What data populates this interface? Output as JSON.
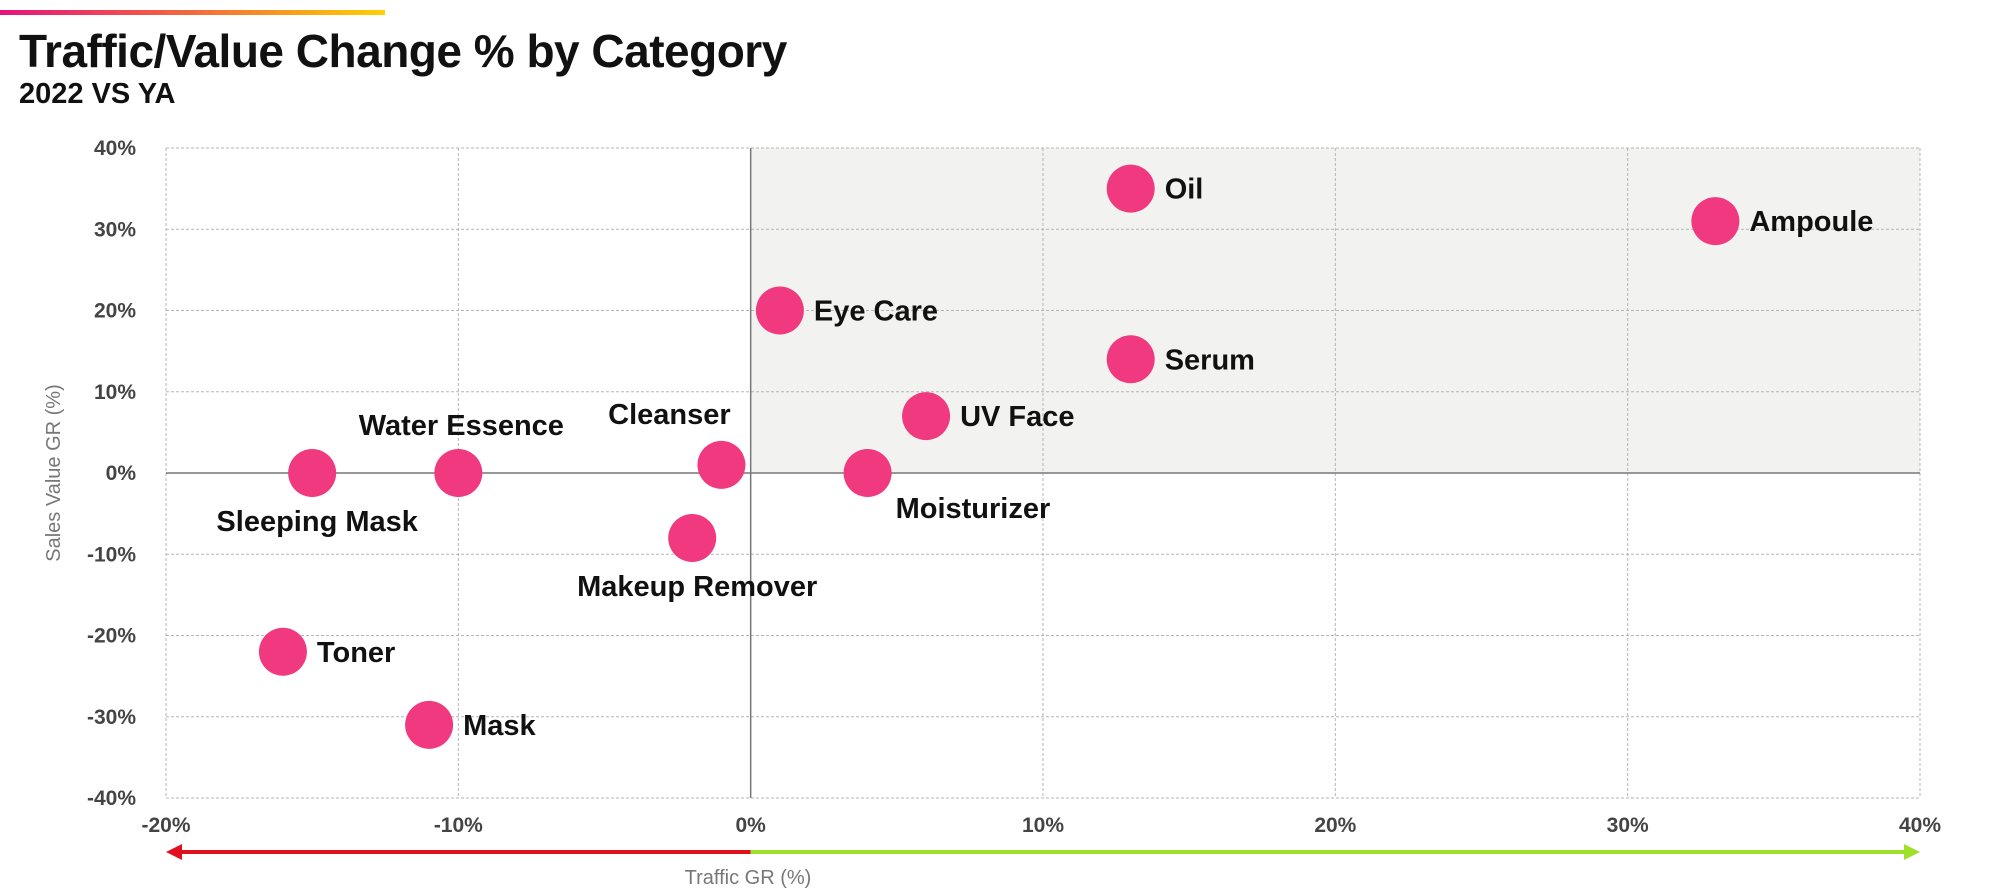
{
  "header": {
    "title": "Traffic/Value Change % by Category",
    "subtitle": "2022 VS YA"
  },
  "colors": {
    "point": "#f0397e",
    "highlight_quadrant": "#f2f2f1",
    "arrow_negative": "#e0101f",
    "arrow_positive": "#9fe02a",
    "grid": "#b5b5b5",
    "zero_axis": "#777777"
  },
  "chart_data": {
    "type": "scatter",
    "title": "Traffic/Value Change % by Category",
    "subtitle": "2022 VS YA",
    "xlabel": "Traffic GR (%)",
    "ylabel": "Sales Value GR (%)",
    "xlim": [
      -20,
      40
    ],
    "ylim": [
      -40,
      40
    ],
    "x_ticks": [
      -20,
      -10,
      0,
      10,
      20,
      30,
      40
    ],
    "y_ticks": [
      -40,
      -30,
      -20,
      -10,
      0,
      10,
      20,
      30,
      40
    ],
    "x_tick_labels": [
      "-20%",
      "-10%",
      "0%",
      "10%",
      "20%",
      "30%",
      "40%"
    ],
    "y_tick_labels": [
      "-40%",
      "-30%",
      "-20%",
      "-10%",
      "0%",
      "10%",
      "20%",
      "30%",
      "40%"
    ],
    "grid": true,
    "highlighted_quadrant": "top-right",
    "points": [
      {
        "label": "Oil",
        "x": 13,
        "y": 35,
        "label_pos": "right"
      },
      {
        "label": "Ampoule",
        "x": 33,
        "y": 31,
        "label_pos": "right"
      },
      {
        "label": "Eye Care",
        "x": 1,
        "y": 20,
        "label_pos": "right"
      },
      {
        "label": "Serum",
        "x": 13,
        "y": 14,
        "label_pos": "right"
      },
      {
        "label": "UV Face",
        "x": 6,
        "y": 7,
        "label_pos": "right"
      },
      {
        "label": "Water Essence",
        "x": -10,
        "y": 0,
        "label_pos": "above"
      },
      {
        "label": "Cleanser",
        "x": -1,
        "y": 1,
        "label_pos": "above-left"
      },
      {
        "label": "Sleeping Mask",
        "x": -15,
        "y": 0,
        "label_pos": "below"
      },
      {
        "label": "Moisturizer",
        "x": 4,
        "y": 0,
        "label_pos": "below-right"
      },
      {
        "label": "Makeup Remover",
        "x": -2,
        "y": -8,
        "label_pos": "below"
      },
      {
        "label": "Toner",
        "x": -16,
        "y": -22,
        "label_pos": "right"
      },
      {
        "label": "Mask",
        "x": -11,
        "y": -31,
        "label_pos": "right"
      }
    ]
  }
}
